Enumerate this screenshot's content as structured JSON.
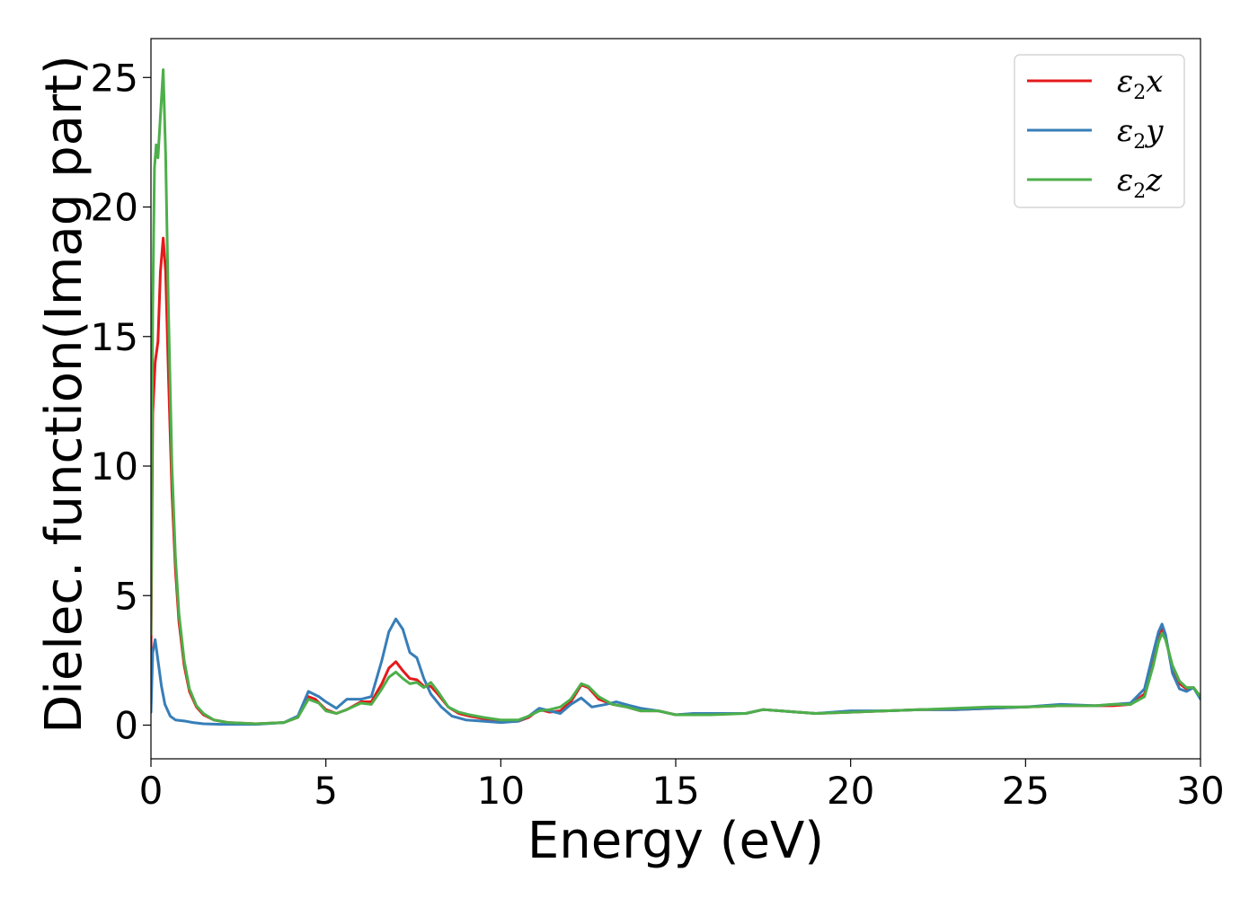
{
  "chart_data": {
    "type": "line",
    "xlabel": "Energy (eV)",
    "ylabel": "Dielec. function(Imag part)",
    "xlim": [
      0,
      30
    ],
    "ylim": [
      -1.3,
      26.5
    ],
    "x_ticks": [
      0,
      5,
      10,
      15,
      20,
      25,
      30
    ],
    "y_ticks": [
      0,
      5,
      10,
      15,
      20,
      25
    ],
    "grid": false,
    "legend_position": "top-right",
    "series": [
      {
        "name": "ε2x",
        "name_base": "ε",
        "name_sub": "2",
        "name_var": "x",
        "color": "#e41a1c",
        "points": [
          [
            0,
            2.8
          ],
          [
            0.05,
            12.0
          ],
          [
            0.12,
            14.0
          ],
          [
            0.2,
            14.8
          ],
          [
            0.27,
            17.5
          ],
          [
            0.35,
            18.8
          ],
          [
            0.42,
            17.5
          ],
          [
            0.5,
            13.5
          ],
          [
            0.6,
            9.0
          ],
          [
            0.7,
            6.0
          ],
          [
            0.8,
            4.0
          ],
          [
            0.95,
            2.3
          ],
          [
            1.1,
            1.3
          ],
          [
            1.3,
            0.7
          ],
          [
            1.5,
            0.4
          ],
          [
            1.8,
            0.2
          ],
          [
            2.2,
            0.1
          ],
          [
            3.0,
            0.05
          ],
          [
            3.8,
            0.1
          ],
          [
            4.2,
            0.3
          ],
          [
            4.5,
            1.1
          ],
          [
            4.7,
            1.0
          ],
          [
            5.0,
            0.6
          ],
          [
            5.3,
            0.45
          ],
          [
            5.6,
            0.6
          ],
          [
            6.0,
            0.9
          ],
          [
            6.3,
            0.9
          ],
          [
            6.6,
            1.6
          ],
          [
            6.8,
            2.2
          ],
          [
            7.0,
            2.45
          ],
          [
            7.2,
            2.1
          ],
          [
            7.4,
            1.8
          ],
          [
            7.6,
            1.75
          ],
          [
            7.8,
            1.5
          ],
          [
            8.0,
            1.5
          ],
          [
            8.2,
            1.2
          ],
          [
            8.5,
            0.7
          ],
          [
            8.8,
            0.45
          ],
          [
            9.1,
            0.35
          ],
          [
            9.5,
            0.25
          ],
          [
            10.0,
            0.15
          ],
          [
            10.5,
            0.15
          ],
          [
            10.8,
            0.3
          ],
          [
            11.1,
            0.6
          ],
          [
            11.4,
            0.5
          ],
          [
            11.7,
            0.55
          ],
          [
            12.0,
            0.9
          ],
          [
            12.3,
            1.55
          ],
          [
            12.5,
            1.45
          ],
          [
            12.8,
            1.0
          ],
          [
            13.2,
            0.8
          ],
          [
            13.6,
            0.7
          ],
          [
            14.0,
            0.55
          ],
          [
            14.5,
            0.55
          ],
          [
            15.0,
            0.4
          ],
          [
            16.0,
            0.45
          ],
          [
            17.0,
            0.45
          ],
          [
            17.5,
            0.6
          ],
          [
            18.0,
            0.55
          ],
          [
            18.5,
            0.5
          ],
          [
            19.0,
            0.45
          ],
          [
            20.0,
            0.5
          ],
          [
            21.0,
            0.55
          ],
          [
            22.0,
            0.6
          ],
          [
            23.0,
            0.6
          ],
          [
            24.0,
            0.65
          ],
          [
            25.0,
            0.7
          ],
          [
            26.0,
            0.75
          ],
          [
            27.0,
            0.75
          ],
          [
            27.5,
            0.75
          ],
          [
            28.0,
            0.8
          ],
          [
            28.4,
            1.2
          ],
          [
            28.65,
            2.5
          ],
          [
            28.8,
            3.4
          ],
          [
            28.9,
            3.7
          ],
          [
            29.0,
            3.4
          ],
          [
            29.2,
            2.2
          ],
          [
            29.4,
            1.6
          ],
          [
            29.6,
            1.4
          ],
          [
            29.8,
            1.45
          ],
          [
            30.0,
            1.1
          ]
        ]
      },
      {
        "name": "ε2y",
        "name_base": "ε",
        "name_sub": "2",
        "name_var": "y",
        "color": "#377eb8",
        "points": [
          [
            0,
            0.5
          ],
          [
            0.05,
            2.8
          ],
          [
            0.12,
            3.3
          ],
          [
            0.2,
            2.5
          ],
          [
            0.3,
            1.5
          ],
          [
            0.4,
            0.8
          ],
          [
            0.55,
            0.35
          ],
          [
            0.7,
            0.2
          ],
          [
            1.0,
            0.15
          ],
          [
            1.2,
            0.1
          ],
          [
            1.5,
            0.05
          ],
          [
            2.0,
            0.03
          ],
          [
            3.0,
            0.03
          ],
          [
            3.8,
            0.1
          ],
          [
            4.2,
            0.35
          ],
          [
            4.5,
            1.3
          ],
          [
            4.8,
            1.1
          ],
          [
            5.0,
            0.9
          ],
          [
            5.3,
            0.65
          ],
          [
            5.6,
            1.0
          ],
          [
            6.0,
            1.0
          ],
          [
            6.3,
            1.1
          ],
          [
            6.6,
            2.5
          ],
          [
            6.8,
            3.6
          ],
          [
            7.0,
            4.1
          ],
          [
            7.2,
            3.7
          ],
          [
            7.4,
            2.8
          ],
          [
            7.6,
            2.6
          ],
          [
            7.8,
            1.8
          ],
          [
            8.0,
            1.2
          ],
          [
            8.3,
            0.7
          ],
          [
            8.6,
            0.35
          ],
          [
            9.0,
            0.2
          ],
          [
            9.5,
            0.15
          ],
          [
            10.0,
            0.1
          ],
          [
            10.5,
            0.15
          ],
          [
            10.8,
            0.35
          ],
          [
            11.1,
            0.65
          ],
          [
            11.4,
            0.55
          ],
          [
            11.7,
            0.45
          ],
          [
            12.0,
            0.8
          ],
          [
            12.3,
            1.05
          ],
          [
            12.6,
            0.7
          ],
          [
            13.0,
            0.8
          ],
          [
            13.3,
            0.9
          ],
          [
            13.7,
            0.75
          ],
          [
            14.0,
            0.65
          ],
          [
            14.5,
            0.55
          ],
          [
            15.0,
            0.4
          ],
          [
            15.5,
            0.45
          ],
          [
            16.0,
            0.45
          ],
          [
            17.0,
            0.45
          ],
          [
            17.5,
            0.6
          ],
          [
            18.0,
            0.55
          ],
          [
            18.5,
            0.5
          ],
          [
            19.0,
            0.45
          ],
          [
            20.0,
            0.55
          ],
          [
            21.0,
            0.55
          ],
          [
            22.0,
            0.6
          ],
          [
            23.0,
            0.6
          ],
          [
            24.0,
            0.65
          ],
          [
            25.0,
            0.7
          ],
          [
            26.0,
            0.8
          ],
          [
            27.0,
            0.75
          ],
          [
            27.5,
            0.8
          ],
          [
            28.0,
            0.85
          ],
          [
            28.4,
            1.4
          ],
          [
            28.65,
            2.8
          ],
          [
            28.8,
            3.6
          ],
          [
            28.9,
            3.9
          ],
          [
            29.0,
            3.5
          ],
          [
            29.2,
            2.0
          ],
          [
            29.4,
            1.4
          ],
          [
            29.6,
            1.3
          ],
          [
            29.8,
            1.45
          ],
          [
            30.0,
            1.0
          ]
        ]
      },
      {
        "name": "ε2z",
        "name_base": "ε",
        "name_sub": "2",
        "name_var": "z",
        "color": "#4daf4a",
        "points": [
          [
            0,
            3.5
          ],
          [
            0.05,
            16.0
          ],
          [
            0.1,
            21.5
          ],
          [
            0.15,
            22.4
          ],
          [
            0.2,
            21.9
          ],
          [
            0.27,
            23.5
          ],
          [
            0.35,
            25.3
          ],
          [
            0.42,
            22.0
          ],
          [
            0.5,
            16.0
          ],
          [
            0.6,
            10.0
          ],
          [
            0.7,
            6.5
          ],
          [
            0.8,
            4.3
          ],
          [
            0.95,
            2.5
          ],
          [
            1.1,
            1.4
          ],
          [
            1.3,
            0.75
          ],
          [
            1.5,
            0.45
          ],
          [
            1.8,
            0.2
          ],
          [
            2.2,
            0.1
          ],
          [
            3.0,
            0.05
          ],
          [
            3.8,
            0.1
          ],
          [
            4.2,
            0.3
          ],
          [
            4.5,
            1.0
          ],
          [
            4.8,
            0.85
          ],
          [
            5.0,
            0.55
          ],
          [
            5.3,
            0.45
          ],
          [
            5.6,
            0.6
          ],
          [
            6.0,
            0.85
          ],
          [
            6.3,
            0.8
          ],
          [
            6.6,
            1.4
          ],
          [
            6.8,
            1.85
          ],
          [
            7.0,
            2.05
          ],
          [
            7.2,
            1.8
          ],
          [
            7.4,
            1.6
          ],
          [
            7.6,
            1.65
          ],
          [
            7.8,
            1.45
          ],
          [
            8.0,
            1.65
          ],
          [
            8.2,
            1.3
          ],
          [
            8.5,
            0.7
          ],
          [
            8.8,
            0.5
          ],
          [
            9.1,
            0.4
          ],
          [
            9.5,
            0.3
          ],
          [
            10.0,
            0.2
          ],
          [
            10.5,
            0.2
          ],
          [
            10.8,
            0.35
          ],
          [
            11.1,
            0.55
          ],
          [
            11.4,
            0.6
          ],
          [
            11.7,
            0.7
          ],
          [
            12.0,
            1.0
          ],
          [
            12.3,
            1.6
          ],
          [
            12.5,
            1.5
          ],
          [
            12.8,
            1.1
          ],
          [
            13.2,
            0.8
          ],
          [
            13.6,
            0.7
          ],
          [
            14.0,
            0.55
          ],
          [
            14.5,
            0.55
          ],
          [
            15.0,
            0.4
          ],
          [
            16.0,
            0.4
          ],
          [
            17.0,
            0.45
          ],
          [
            17.5,
            0.6
          ],
          [
            18.0,
            0.55
          ],
          [
            18.5,
            0.5
          ],
          [
            19.0,
            0.45
          ],
          [
            20.0,
            0.5
          ],
          [
            21.0,
            0.55
          ],
          [
            22.0,
            0.6
          ],
          [
            23.0,
            0.65
          ],
          [
            24.0,
            0.7
          ],
          [
            25.0,
            0.7
          ],
          [
            26.0,
            0.75
          ],
          [
            27.0,
            0.75
          ],
          [
            27.5,
            0.8
          ],
          [
            28.0,
            0.8
          ],
          [
            28.4,
            1.1
          ],
          [
            28.65,
            2.3
          ],
          [
            28.8,
            3.2
          ],
          [
            28.9,
            3.55
          ],
          [
            29.0,
            3.3
          ],
          [
            29.2,
            2.3
          ],
          [
            29.4,
            1.7
          ],
          [
            29.6,
            1.45
          ],
          [
            29.8,
            1.45
          ],
          [
            30.0,
            1.1
          ]
        ]
      }
    ]
  }
}
